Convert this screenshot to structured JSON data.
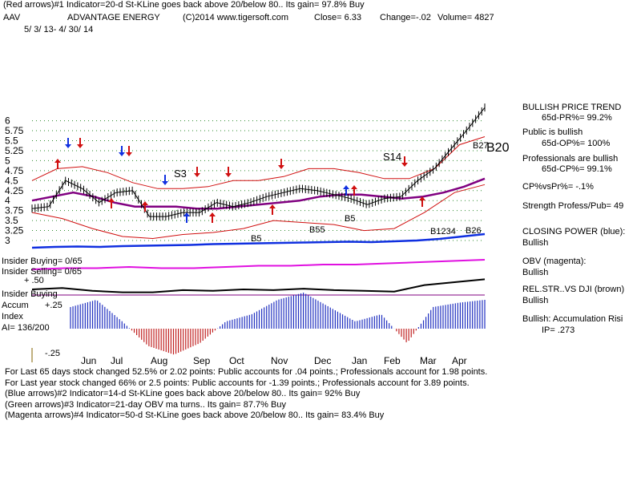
{
  "header": {
    "line1": "(Red arrows)#1 Indicator=20-d St-KLine goes back above 20/below 80.. Its gain= 97.8% Buy",
    "ticker": "AAV",
    "company": "ADVANTAGE ENERGY",
    "copyright": "(C)2014 www.tigersoft.com",
    "close": "Close=  6.33",
    "change": "Change=-.02",
    "volume": "Volume= 4827",
    "date_range": "5/ 3/ 13-  4/ 30/ 14"
  },
  "right_panel": {
    "trend_title": "BULLISH PRICE TREND",
    "pr": "65d-PR%= 99.2%",
    "public_title": "Public is bullish",
    "op": "65d-OP%= 100%",
    "prof_title": "Professionals are bullish",
    "cp": "65d-CP%= 99.1%",
    "cpvspr": "CP%vsPr%= -.1%",
    "strength": "Strength Profess/Pub= 49",
    "closing_power": "CLOSING POWER (blue):",
    "closing_power_val": "Bullish",
    "obv": "OBV (magenta):",
    "obv_val": "Bullish",
    "relstr": "REL.STR..VS DJI (brown)",
    "relstr_val": "Bullish",
    "accum": "Bullish: Accumulation Risi",
    "ip": "IP=  .273"
  },
  "left_labels": {
    "insider_buying": "Insider Buying= 0/65",
    "insider_selling": "Insider Selling= 0/65",
    "plus50": "+ .50",
    "insider_buying2": "Insider Buying",
    "accum": "Accum",
    "plus25": "+.25",
    "index": "Index",
    "ai": "AI= 136/200",
    "minus25": "-.25"
  },
  "footer": {
    "line1": "For Last 65 days stock changed  52.5% or  2.02 points:  Public accounts for  .04 points.;  Professionals account for  1.98 points.",
    "line2": "For Last year stock changed  66% or  2.5 points:  Public accounts for -1.39 points.;  Professionals account for  3.89 points.",
    "line3": "(Blue arrows)#2 Indicator=14-d St-KLine goes back above 20/below 80.. Its gain= 92% Buy",
    "line4": "(Green arrows)#3 Indicator=21-day OBV ma turns.. Its gain= 87.7% Buy",
    "line5": "(Magenta arrows)#4 Indicator=50-d St-KLine goes back above 20/below 80.. Its gain= 83.4% Buy"
  },
  "annotations": {
    "s3": "S3",
    "s14": "S14",
    "b20": "B20",
    "b27": "B27",
    "b5a": "B5",
    "b5b": "B5",
    "b55": "B55",
    "b26": "B26",
    "b14": "B1234"
  },
  "chart_data": {
    "type": "line",
    "ylim": [
      3,
      6.25
    ],
    "yticks": [
      "6",
      "5.75",
      "5.5",
      "5.25",
      "5",
      "4.75",
      "4.5",
      "4.25",
      "4",
      "3.75",
      "3.5",
      "3.25",
      "3"
    ],
    "ytick_values": [
      6,
      5.75,
      5.5,
      5.25,
      5,
      4.75,
      4.5,
      4.25,
      4,
      3.75,
      3.5,
      3.25,
      3
    ],
    "months": [
      "Jun",
      "Jul",
      "Aug",
      "Sep",
      "Oct",
      "Nov",
      "Dec",
      "Jan",
      "Feb",
      "Mar",
      "Apr"
    ],
    "price": [
      3.8,
      3.85,
      4.5,
      4.3,
      3.95,
      4.2,
      4.25,
      3.6,
      3.6,
      3.7,
      3.7,
      3.95,
      3.85,
      3.95,
      4.1,
      4.2,
      4.3,
      4.25,
      4.15,
      4.05,
      3.9,
      4.05,
      4.1,
      4.5,
      4.8,
      5.3,
      5.8,
      6.33
    ],
    "ma": [
      4.0,
      4.1,
      4.2,
      4.1,
      3.95,
      3.85,
      3.85,
      3.85,
      3.8,
      3.8,
      3.85,
      3.9,
      3.95,
      4.0,
      4.1,
      4.15,
      4.15,
      4.1,
      4.05,
      4.1,
      4.2,
      4.35,
      4.55
    ],
    "upper_band": [
      4.5,
      4.8,
      4.85,
      4.7,
      4.45,
      4.3,
      4.3,
      4.35,
      4.5,
      4.5,
      4.6,
      4.8,
      4.8,
      4.7,
      4.55,
      4.55,
      4.8,
      5.4,
      5.6
    ],
    "lower_band": [
      3.7,
      3.55,
      3.3,
      3.1,
      3.05,
      3.15,
      3.2,
      3.3,
      3.5,
      3.45,
      3.4,
      3.25,
      3.3,
      3.7,
      4.2,
      4.4
    ],
    "closing_power": [
      0.1,
      0.2,
      0.25,
      0.2,
      0.3,
      0.35,
      0.4,
      0.45,
      0.55,
      0.6,
      0.65,
      0.7,
      0.75,
      0.8,
      0.85,
      0.8,
      0.9,
      1.0,
      1.2,
      1.5,
      1.8
    ],
    "obv": [
      0.3,
      0.35,
      0.35,
      0.4,
      0.35,
      0.35,
      0.4,
      0.45,
      0.45,
      0.5,
      0.5,
      0.55,
      0.6,
      0.65,
      0.7
    ],
    "rel_strength": [
      0.5,
      0.6,
      0.4,
      0.3,
      0.3,
      0.45,
      0.4,
      0.5,
      0.45,
      0.55,
      0.45,
      0.4,
      0.35,
      0.8,
      1.0,
      1.2
    ],
    "accum_index": [
      0.15,
      0.2,
      0.05,
      -0.12,
      -0.18,
      -0.1,
      0.05,
      0.1,
      0.2,
      0.25,
      0.15,
      0.05,
      0.1,
      -0.1,
      0.15,
      0.18,
      0.2
    ]
  }
}
